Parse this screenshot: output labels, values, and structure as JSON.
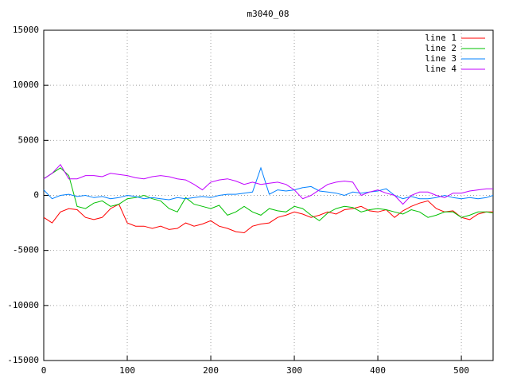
{
  "chart_data": {
    "type": "line",
    "title": "m3040_08",
    "x": [
      0,
      10,
      20,
      30,
      40,
      50,
      60,
      70,
      80,
      90,
      100,
      110,
      120,
      130,
      140,
      150,
      160,
      170,
      180,
      190,
      200,
      210,
      220,
      230,
      240,
      250,
      260,
      270,
      280,
      290,
      300,
      310,
      320,
      330,
      340,
      350,
      360,
      370,
      380,
      390,
      400,
      410,
      420,
      430,
      440,
      450,
      460,
      470,
      480,
      490,
      500,
      510,
      520,
      530,
      538
    ],
    "series": [
      {
        "name": "line 1",
        "color": "#ff0000",
        "values": [
          -2000,
          -2500,
          -1500,
          -1200,
          -1300,
          -2000,
          -2200,
          -2000,
          -1200,
          -800,
          -2500,
          -2800,
          -2800,
          -3000,
          -2800,
          -3100,
          -3000,
          -2500,
          -2800,
          -2600,
          -2300,
          -2800,
          -3000,
          -3300,
          -3400,
          -2800,
          -2600,
          -2500,
          -2000,
          -1800,
          -1500,
          -1700,
          -2000,
          -1800,
          -1500,
          -1700,
          -1300,
          -1200,
          -1000,
          -1400,
          -1500,
          -1300,
          -2000,
          -1400,
          -1000,
          -700,
          -500,
          -1200,
          -1500,
          -1400,
          -2000,
          -2200,
          -1700,
          -1500,
          -1500
        ]
      },
      {
        "name": "line 2",
        "color": "#00c000",
        "values": [
          1500,
          2000,
          2500,
          1800,
          -1000,
          -1200,
          -700,
          -500,
          -1000,
          -800,
          -300,
          -200,
          0,
          -300,
          -500,
          -1200,
          -1500,
          -200,
          -800,
          -1000,
          -1200,
          -900,
          -1800,
          -1500,
          -1000,
          -1500,
          -1800,
          -1200,
          -1400,
          -1500,
          -1000,
          -1200,
          -1800,
          -2300,
          -1600,
          -1200,
          -1000,
          -1100,
          -1500,
          -1300,
          -1200,
          -1300,
          -1500,
          -1700,
          -1300,
          -1500,
          -2000,
          -1800,
          -1500,
          -1500,
          -2000,
          -1800,
          -1500,
          -1500,
          -1600
        ]
      },
      {
        "name": "line 3",
        "color": "#0080ff",
        "values": [
          500,
          -300,
          0,
          100,
          -100,
          0,
          -200,
          -100,
          -300,
          -200,
          0,
          -100,
          -300,
          -200,
          -300,
          -400,
          -200,
          -300,
          -200,
          -100,
          -200,
          0,
          100,
          100,
          200,
          300,
          2500,
          100,
          500,
          400,
          500,
          700,
          800,
          400,
          300,
          200,
          0,
          300,
          200,
          300,
          400,
          600,
          0,
          -300,
          -100,
          -300,
          -300,
          -200,
          0,
          -200,
          -300,
          -200,
          -300,
          -200,
          0
        ]
      },
      {
        "name": "line 4",
        "color": "#c000ff",
        "values": [
          1500,
          2000,
          2800,
          1500,
          1500,
          1800,
          1800,
          1700,
          2000,
          1900,
          1800,
          1600,
          1500,
          1700,
          1800,
          1700,
          1500,
          1400,
          1000,
          500,
          1200,
          1400,
          1500,
          1300,
          1000,
          1200,
          1000,
          1100,
          1200,
          1000,
          500,
          -300,
          0,
          500,
          1000,
          1200,
          1300,
          1200,
          0,
          300,
          500,
          200,
          0,
          -800,
          0,
          300,
          300,
          0,
          -200,
          200,
          200,
          400,
          500,
          600,
          600
        ]
      }
    ],
    "xlim": [
      0,
      538
    ],
    "ylim": [
      -15000,
      15000
    ],
    "xticks": [
      0,
      100,
      200,
      300,
      400,
      500
    ],
    "yticks": [
      -15000,
      -10000,
      -5000,
      0,
      5000,
      10000,
      15000
    ],
    "grid": true,
    "legend": "top-right"
  }
}
